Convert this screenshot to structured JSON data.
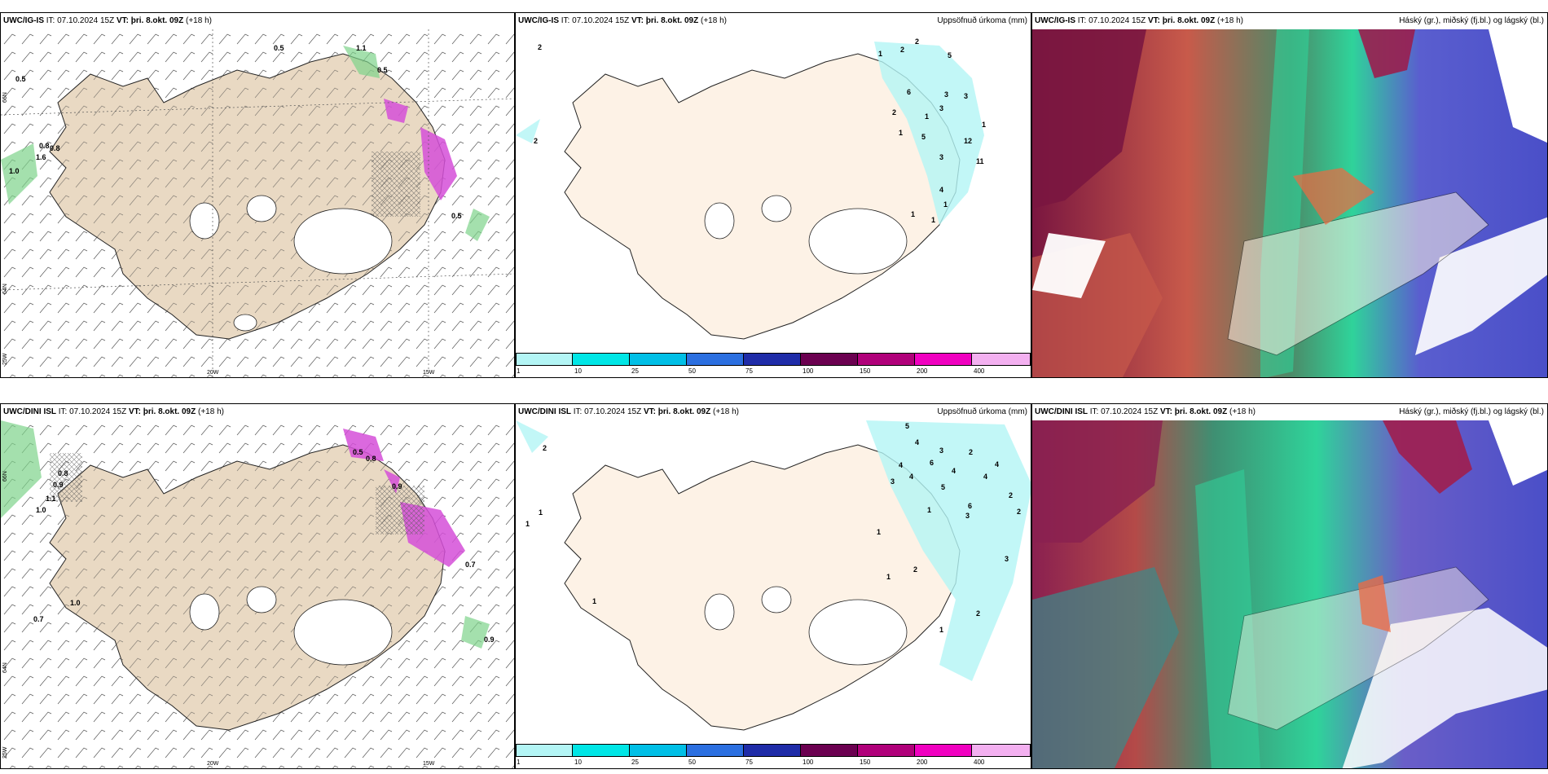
{
  "panels": [
    {
      "model": "UWC/IG-IS",
      "issue": "IT: 07.10.2024 15Z",
      "valid_label": "VT:",
      "valid": "þri. 8.okt. 09Z",
      "lead": "(+18 h)",
      "right_title": ""
    },
    {
      "model": "UWC/IG-IS",
      "issue": "IT: 07.10.2024 15Z",
      "valid_label": "VT:",
      "valid": "þri. 8.okt. 09Z",
      "lead": "(+18 h)",
      "right_title": "Uppsöfnuð úrkoma (mm)"
    },
    {
      "model": "UWC/IG-IS",
      "issue": "IT: 07.10.2024 15Z",
      "valid_label": "VT:",
      "valid": "þri. 8.okt. 09Z",
      "lead": "(+18 h)",
      "right_title": "Háský (gr.), miðský (fj.bl.) og lágský (bl.)"
    },
    {
      "model": "UWC/DINI ISL",
      "issue": "IT: 07.10.2024 15Z",
      "valid_label": "VT:",
      "valid": "þri. 8.okt. 09Z",
      "lead": "(+18 h)",
      "right_title": ""
    },
    {
      "model": "UWC/DINI ISL",
      "issue": "IT: 07.10.2024 15Z",
      "valid_label": "VT:",
      "valid": "þri. 8.okt. 09Z",
      "lead": "(+18 h)",
      "right_title": "Uppsöfnuð úrkoma (mm)"
    },
    {
      "model": "UWC/DINI ISL",
      "issue": "IT: 07.10.2024 15Z",
      "valid_label": "VT:",
      "valid": "þri. 8.okt. 09Z",
      "lead": "(+18 h)",
      "right_title": "Háský (gr.), miðský (fj.bl.) og lágský (bl.)"
    }
  ],
  "axis_labels": {
    "lat66": "66N",
    "lat64": "64N",
    "lon25": "25W",
    "lon20": "20W",
    "lon15": "15W"
  },
  "colorbar": {
    "labels": [
      "1",
      "10",
      "25",
      "50",
      "75",
      "100",
      "150",
      "200",
      "400"
    ],
    "colors": [
      "#b3f5f5",
      "#00e6e6",
      "#00bfe6",
      "#2b6fe0",
      "#1f2ca8",
      "#6b0050",
      "#b0007a",
      "#f000c0",
      "#f3b0f0"
    ]
  },
  "precip_values": {
    "top_left": [
      "0.5",
      "0.5",
      "1.1",
      "0.8",
      "0.8",
      "0.5",
      "1.6",
      "1.0",
      "0.5"
    ],
    "bottom_left": [
      "0.8",
      "0.9",
      "1.1",
      "1.0",
      "0.7",
      "1.0",
      "0.7",
      "0.9",
      "0.5",
      "0.8",
      "0.9"
    ],
    "top_mid": [
      "2",
      "2",
      "1",
      "2",
      "2",
      "5",
      "6",
      "3",
      "2",
      "1",
      "3",
      "5",
      "12",
      "3",
      "1",
      "1",
      "4",
      "1",
      "1",
      "11",
      "3",
      "1"
    ],
    "bottom_mid": [
      "2",
      "5",
      "4",
      "3",
      "4",
      "6",
      "4",
      "3",
      "2",
      "4",
      "5",
      "4",
      "4",
      "2",
      "1",
      "3",
      "6",
      "2",
      "1",
      "1",
      "1",
      "2",
      "1",
      "1",
      "2",
      "1",
      "3"
    ]
  },
  "colors": {
    "land": "#e9d9c3",
    "land_light": "#fdf2e6",
    "sea": "#ffffff",
    "pink_precip": "#d54fd8",
    "green_precip": "#7ed38a"
  }
}
